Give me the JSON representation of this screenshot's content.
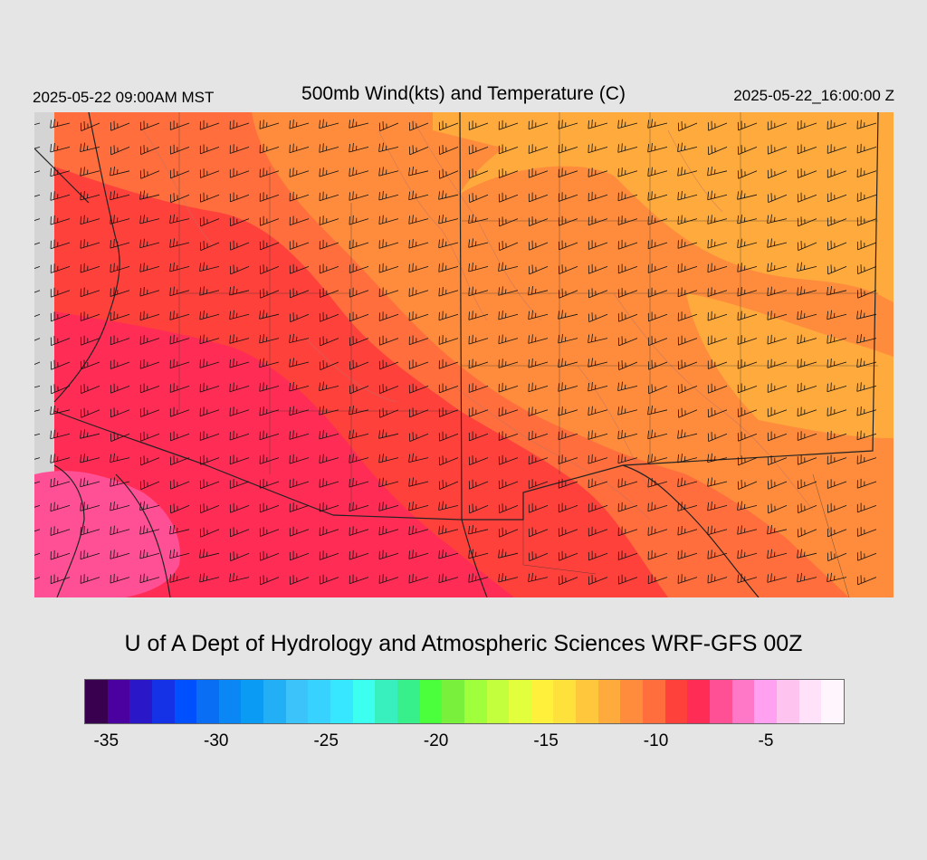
{
  "header": {
    "valid_local": "2025-05-22 09:00AM MST",
    "title": "500mb Wind(kts) and Temperature (C)",
    "valid_utc": "2025-05-22_16:00:00 Z"
  },
  "credit": "U of A Dept of Hydrology and Atmospheric Sciences WRF-GFS 00Z",
  "colorbar": {
    "colors": [
      "#3a0050",
      "#4b00a0",
      "#2a18c8",
      "#1632e6",
      "#0050ff",
      "#0a6ef5",
      "#0a86f5",
      "#0a9cf5",
      "#23aff5",
      "#3cc3fa",
      "#37d2ff",
      "#37e6ff",
      "#3cfff0",
      "#37f0be",
      "#37f08c",
      "#4bff3c",
      "#78f03c",
      "#a0ff3c",
      "#c3ff3c",
      "#e1ff3c",
      "#fff03c",
      "#ffe13c",
      "#ffc83c",
      "#ffaa3c",
      "#ff8c3c",
      "#ff6e3c",
      "#ff413c",
      "#ff2d55",
      "#ff5096",
      "#ff78c8",
      "#ffa0f0",
      "#ffc3f0",
      "#ffe1fa",
      "#fff5fc"
    ],
    "ticks": [
      {
        "label": "-35",
        "value": -35
      },
      {
        "label": "-30",
        "value": -30
      },
      {
        "label": "-25",
        "value": -25
      },
      {
        "label": "-20",
        "value": -20
      },
      {
        "label": "-15",
        "value": -15
      },
      {
        "label": "-10",
        "value": -10
      },
      {
        "label": "-5",
        "value": -5
      }
    ],
    "range": [
      -36,
      -1.5
    ]
  },
  "map": {
    "fill_colors": {
      "warm": "#ffaa3c",
      "mid": "#ff8c3c",
      "midcold": "#ff6e3c",
      "cold": "#ff413c",
      "colder": "#ff2d55",
      "coldest": "#ff5096",
      "outside": "#d4d4d4"
    },
    "wind_direction": "west-northwest",
    "barb_icon": "wind-barb-icon"
  }
}
